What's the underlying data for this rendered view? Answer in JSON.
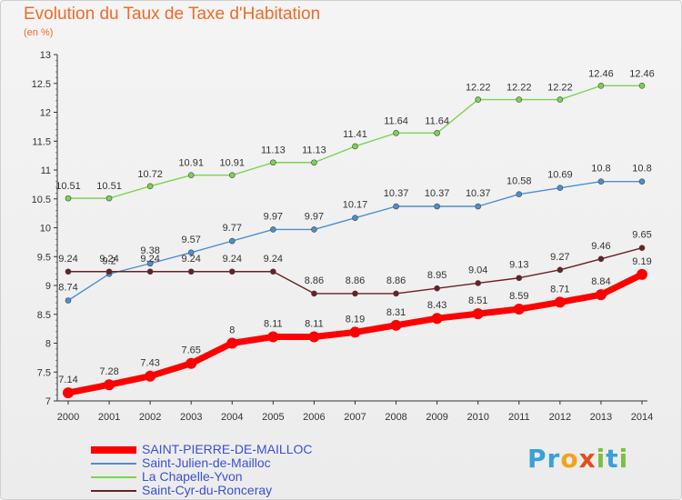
{
  "chart_data": {
    "type": "line",
    "title": "Evolution du Taux de Taxe d'Habitation",
    "subtitle": "(en %)",
    "x": [
      "2000",
      "2001",
      "2002",
      "2003",
      "2004",
      "2005",
      "2006",
      "2007",
      "2008",
      "2009",
      "2010",
      "2011",
      "2012",
      "2013",
      "2014"
    ],
    "ylim": [
      7,
      13
    ],
    "yticks": [
      "7",
      "7.5",
      "8",
      "8.5",
      "9",
      "9.5",
      "10",
      "10.5",
      "11",
      "11.5",
      "12",
      "12.5",
      "13"
    ],
    "grid": false,
    "legend_position": "bottom-left",
    "series": [
      {
        "name": "SAINT-PIERRE-DE-MAILLOC",
        "color": "#ff0000",
        "values": [
          7.14,
          7.28,
          7.43,
          7.65,
          8,
          8.11,
          8.11,
          8.19,
          8.31,
          8.43,
          8.51,
          8.59,
          8.71,
          8.84,
          9.19
        ]
      },
      {
        "name": "Saint-Julien-de-Mailloc",
        "color": "#4a8fd0",
        "values": [
          8.74,
          9.2,
          9.38,
          9.57,
          9.77,
          9.97,
          9.97,
          10.17,
          10.37,
          10.37,
          10.37,
          10.58,
          10.69,
          10.8,
          10.8
        ]
      },
      {
        "name": "La Chapelle-Yvon",
        "color": "#7bd34f",
        "values": [
          10.51,
          10.51,
          10.72,
          10.91,
          10.91,
          11.13,
          11.13,
          11.41,
          11.64,
          11.64,
          12.22,
          12.22,
          12.22,
          12.46,
          12.46
        ]
      },
      {
        "name": "Saint-Cyr-du-Ronceray",
        "color": "#6b1f24",
        "values": [
          9.24,
          9.24,
          9.24,
          9.24,
          9.24,
          9.24,
          8.86,
          8.86,
          8.86,
          8.95,
          9.04,
          9.13,
          9.27,
          9.46,
          9.65
        ]
      }
    ],
    "data_labels": {
      "SAINT-PIERRE-DE-MAILLOC": [
        "7.14",
        "7.28",
        "7.43",
        "7.65",
        "8",
        "8.11",
        "8.11",
        "8.19",
        "8.31",
        "8.43",
        "8.51",
        "8.59",
        "8.71",
        "8.84",
        "9.19"
      ],
      "Saint-Julien-de-Mailloc": [
        "8.74",
        "9.2",
        "9.38",
        "9.57",
        "9.77",
        "9.97",
        "9.97",
        "10.17",
        "10.37",
        "10.37",
        "10.37",
        "10.58",
        "10.69",
        "10.8",
        "10.8"
      ],
      "La Chapelle-Yvon": [
        "10.51",
        "10.51",
        "10.72",
        "10.91",
        "10.91",
        "11.13",
        "11.13",
        "11.41",
        "11.64",
        "11.64",
        "12.22",
        "12.22",
        "12.22",
        "12.46",
        "12.46"
      ],
      "Saint-Cyr-du-Ronceray": [
        "9.24",
        "9.24",
        "9.24",
        "9.24",
        "9.24",
        "9.24",
        "8.86",
        "8.86",
        "8.86",
        "8.95",
        "9.04",
        "9.13",
        "9.27",
        "9.46",
        "9.65"
      ]
    }
  },
  "logo": {
    "text": "Proxiti",
    "letters": [
      "P",
      "r",
      "o",
      "x",
      "i",
      "t",
      "i"
    ],
    "colors": [
      "#3aa0d8",
      "#3aa0d8",
      "#f2a21c",
      "#e84c1c",
      "#7bc043",
      "#3aa0d8",
      "#7bc043"
    ]
  }
}
